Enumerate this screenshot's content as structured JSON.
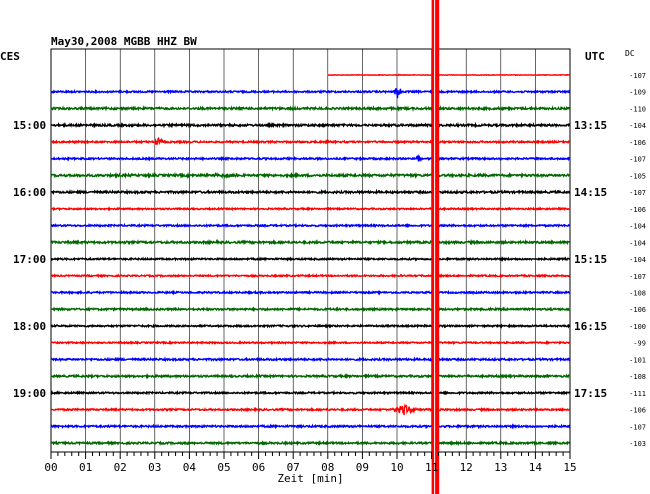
{
  "header": {
    "title": "May30,2008   MGBB HHZ BW",
    "left_label": "CES",
    "right_label": "UTC",
    "dc_label": "DC"
  },
  "chart_data": {
    "type": "line",
    "title": "May30,2008   MGBB HHZ BW",
    "xlabel": "Zeit [min]",
    "xlim": [
      0,
      15
    ],
    "x_ticks": [
      "00",
      "01",
      "02",
      "03",
      "04",
      "05",
      "06",
      "07",
      "08",
      "09",
      "10",
      "11",
      "12",
      "13",
      "14",
      "15"
    ],
    "grid": true,
    "trace_colors": [
      "#ff0000",
      "#0000ff",
      "#006600",
      "#000000"
    ],
    "left_time_labels": [
      {
        "row": 3,
        "label": "15:00"
      },
      {
        "row": 7,
        "label": "16:00"
      },
      {
        "row": 11,
        "label": "17:00"
      },
      {
        "row": 15,
        "label": "18:00"
      },
      {
        "row": 19,
        "label": "19:00"
      }
    ],
    "right_time_labels": [
      {
        "row": 3,
        "label": "13:15"
      },
      {
        "row": 7,
        "label": "14:15"
      },
      {
        "row": 11,
        "label": "15:15"
      },
      {
        "row": 15,
        "label": "16:15"
      },
      {
        "row": 19,
        "label": "17:15"
      }
    ],
    "dc_values": [
      "-107",
      "-109",
      "-110",
      "-104",
      "-106",
      "-107",
      "-105",
      "-107",
      "-106",
      "-104",
      "-104",
      "-104",
      "-107",
      "-108",
      "-106",
      "-100",
      "-99",
      "-101",
      "-108",
      "-111",
      "-106",
      "-107",
      "-103"
    ],
    "traces": [
      {
        "row": 0,
        "color": "#ff0000",
        "start_min": 8.0,
        "end_min": 15.0,
        "noise": 0.25,
        "events": [
          {
            "t": 10.0,
            "amp": 0.6,
            "width": 0.15
          }
        ]
      },
      {
        "row": 1,
        "color": "#0000ff",
        "noise": 0.8,
        "events": [
          {
            "t": 10.02,
            "amp": 7,
            "width": 0.12
          }
        ]
      },
      {
        "row": 2,
        "color": "#006600",
        "noise": 1.0,
        "events": []
      },
      {
        "row": 3,
        "color": "#000000",
        "noise": 1.0,
        "events": []
      },
      {
        "row": 4,
        "color": "#ff0000",
        "noise": 0.8,
        "events": [
          {
            "t": 3.1,
            "amp": 4,
            "width": 0.15
          }
        ]
      },
      {
        "row": 5,
        "color": "#0000ff",
        "noise": 0.8,
        "events": [
          {
            "t": 10.6,
            "amp": 4,
            "width": 0.12
          }
        ]
      },
      {
        "row": 6,
        "color": "#006600",
        "noise": 1.1,
        "events": [
          {
            "t": 5.2,
            "amp": 1.5,
            "width": 0.8
          }
        ]
      },
      {
        "row": 7,
        "color": "#000000",
        "noise": 1.0,
        "events": []
      },
      {
        "row": 8,
        "color": "#ff0000",
        "noise": 0.7,
        "events": []
      },
      {
        "row": 9,
        "color": "#0000ff",
        "noise": 0.8,
        "events": []
      },
      {
        "row": 10,
        "color": "#006600",
        "noise": 1.0,
        "events": []
      },
      {
        "row": 11,
        "color": "#000000",
        "noise": 0.8,
        "events": []
      },
      {
        "row": 12,
        "color": "#ff0000",
        "noise": 0.7,
        "events": []
      },
      {
        "row": 13,
        "color": "#0000ff",
        "noise": 0.8,
        "events": []
      },
      {
        "row": 14,
        "color": "#006600",
        "noise": 0.9,
        "events": []
      },
      {
        "row": 15,
        "color": "#000000",
        "noise": 0.8,
        "events": []
      },
      {
        "row": 16,
        "color": "#ff0000",
        "noise": 0.7,
        "events": []
      },
      {
        "row": 17,
        "color": "#0000ff",
        "noise": 0.9,
        "events": []
      },
      {
        "row": 18,
        "color": "#006600",
        "noise": 0.9,
        "events": []
      },
      {
        "row": 19,
        "color": "#000000",
        "noise": 0.8,
        "events": []
      },
      {
        "row": 20,
        "color": "#ff0000",
        "noise": 0.8,
        "events": [
          {
            "t": 10.2,
            "amp": 5,
            "width": 0.4
          }
        ]
      },
      {
        "row": 21,
        "color": "#0000ff",
        "noise": 0.9,
        "events": []
      },
      {
        "row": 22,
        "color": "#006600",
        "noise": 0.9,
        "events": []
      }
    ],
    "saturated_event": {
      "t_start": 11.0,
      "t_end": 11.22,
      "color": "#ff0000"
    }
  }
}
